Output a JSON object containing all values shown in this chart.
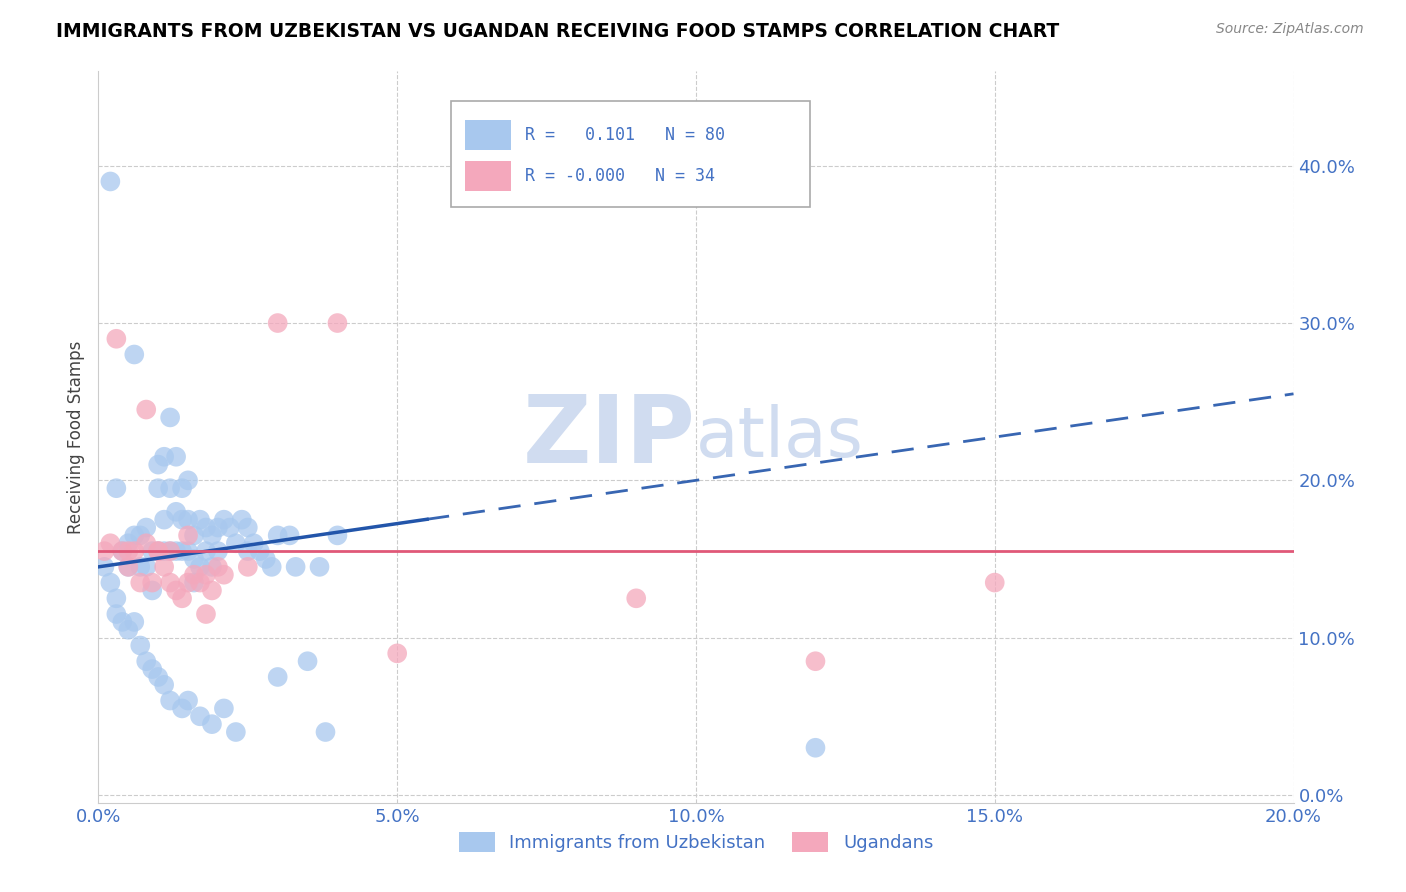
{
  "title": "IMMIGRANTS FROM UZBEKISTAN VS UGANDAN RECEIVING FOOD STAMPS CORRELATION CHART",
  "source": "Source: ZipAtlas.com",
  "ylabel": "Receiving Food Stamps",
  "xlabel_blue": "Immigrants from Uzbekistan",
  "xlabel_pink": "Ugandans",
  "R_blue": 0.101,
  "N_blue": 80,
  "R_pink": -0.0,
  "N_pink": 34,
  "xlim": [
    0.0,
    0.2
  ],
  "ylim": [
    -0.005,
    0.46
  ],
  "yticks": [
    0.0,
    0.1,
    0.2,
    0.3,
    0.4
  ],
  "xticks": [
    0.0,
    0.05,
    0.1,
    0.15,
    0.2
  ],
  "color_blue": "#A8C8EE",
  "color_pink": "#F4A8BC",
  "trend_blue": "#2255AA",
  "trend_pink": "#E05878",
  "watermark_color": "#D0DCF0",
  "blue_scatter_x": [
    0.002,
    0.003,
    0.004,
    0.005,
    0.005,
    0.006,
    0.006,
    0.007,
    0.007,
    0.008,
    0.008,
    0.009,
    0.009,
    0.01,
    0.01,
    0.01,
    0.011,
    0.011,
    0.011,
    0.012,
    0.012,
    0.012,
    0.013,
    0.013,
    0.013,
    0.014,
    0.014,
    0.014,
    0.015,
    0.015,
    0.015,
    0.016,
    0.016,
    0.016,
    0.017,
    0.017,
    0.018,
    0.018,
    0.019,
    0.019,
    0.02,
    0.02,
    0.021,
    0.022,
    0.023,
    0.024,
    0.025,
    0.025,
    0.026,
    0.027,
    0.028,
    0.029,
    0.03,
    0.032,
    0.033,
    0.035,
    0.037,
    0.04,
    0.001,
    0.002,
    0.003,
    0.003,
    0.004,
    0.005,
    0.006,
    0.007,
    0.008,
    0.009,
    0.01,
    0.011,
    0.012,
    0.014,
    0.015,
    0.017,
    0.019,
    0.021,
    0.023,
    0.03,
    0.038,
    0.12
  ],
  "blue_scatter_y": [
    0.39,
    0.195,
    0.155,
    0.16,
    0.145,
    0.28,
    0.165,
    0.165,
    0.145,
    0.17,
    0.145,
    0.13,
    0.155,
    0.21,
    0.195,
    0.155,
    0.215,
    0.175,
    0.155,
    0.24,
    0.195,
    0.155,
    0.215,
    0.18,
    0.155,
    0.195,
    0.175,
    0.155,
    0.2,
    0.175,
    0.155,
    0.165,
    0.15,
    0.135,
    0.175,
    0.145,
    0.17,
    0.155,
    0.165,
    0.145,
    0.17,
    0.155,
    0.175,
    0.17,
    0.16,
    0.175,
    0.17,
    0.155,
    0.16,
    0.155,
    0.15,
    0.145,
    0.165,
    0.165,
    0.145,
    0.085,
    0.145,
    0.165,
    0.145,
    0.135,
    0.125,
    0.115,
    0.11,
    0.105,
    0.11,
    0.095,
    0.085,
    0.08,
    0.075,
    0.07,
    0.06,
    0.055,
    0.06,
    0.05,
    0.045,
    0.055,
    0.04,
    0.075,
    0.04,
    0.03
  ],
  "pink_scatter_x": [
    0.001,
    0.002,
    0.003,
    0.004,
    0.005,
    0.006,
    0.007,
    0.008,
    0.009,
    0.01,
    0.011,
    0.012,
    0.013,
    0.014,
    0.015,
    0.016,
    0.017,
    0.018,
    0.019,
    0.02,
    0.021,
    0.008,
    0.01,
    0.012,
    0.015,
    0.018,
    0.025,
    0.03,
    0.04,
    0.05,
    0.09,
    0.12,
    0.15,
    0.005
  ],
  "pink_scatter_y": [
    0.155,
    0.16,
    0.29,
    0.155,
    0.145,
    0.155,
    0.135,
    0.16,
    0.135,
    0.155,
    0.145,
    0.135,
    0.13,
    0.125,
    0.135,
    0.14,
    0.135,
    0.14,
    0.13,
    0.145,
    0.14,
    0.245,
    0.155,
    0.155,
    0.165,
    0.115,
    0.145,
    0.3,
    0.3,
    0.09,
    0.125,
    0.085,
    0.135,
    0.155
  ],
  "trend_blue_x0": 0.0,
  "trend_blue_y0": 0.145,
  "trend_blue_x1": 0.2,
  "trend_blue_y1": 0.255,
  "trend_blue_solid_x1": 0.055,
  "trend_pink_y": 0.155
}
